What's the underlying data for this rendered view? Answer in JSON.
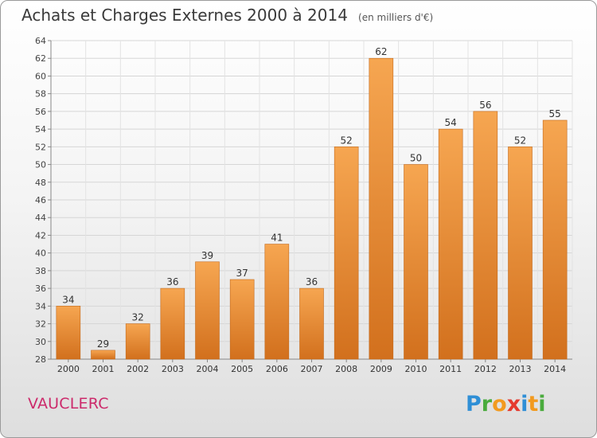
{
  "header": {
    "title": "Achats et Charges Externes 2000 à 2014",
    "subtitle": "(en milliers d'€)"
  },
  "footer": {
    "commune": "VAUCLERC",
    "logo_text": "Proxiti"
  },
  "colors": {
    "bar_light": "#f6a651",
    "bar_dark": "#d2701d",
    "commune": "#cc2a6b"
  },
  "chart_data": {
    "type": "bar",
    "title": "Achats et Charges Externes 2000 à 2014",
    "subtitle": "(en milliers d'€)",
    "xlabel": "",
    "ylabel": "",
    "ylim": [
      28,
      64
    ],
    "ytick_step": 2,
    "grid": "horizontal",
    "categories": [
      "2000",
      "2001",
      "2002",
      "2003",
      "2004",
      "2005",
      "2006",
      "2007",
      "2008",
      "2009",
      "2010",
      "2011",
      "2012",
      "2013",
      "2014"
    ],
    "values": [
      34,
      29,
      32,
      36,
      39,
      37,
      41,
      36,
      52,
      62,
      50,
      54,
      56,
      52,
      55
    ]
  }
}
